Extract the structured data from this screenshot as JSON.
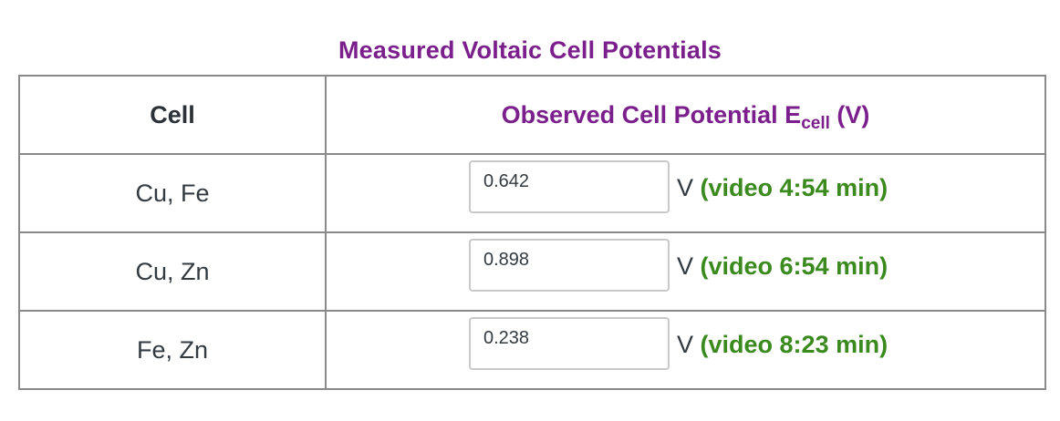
{
  "caption": "Measured Voltaic Cell Potentials",
  "header": {
    "cell": "Cell",
    "potential_prefix": "Observed Cell Potential E",
    "potential_sub": "cell",
    "potential_suffix": " (V)"
  },
  "rows": [
    {
      "cell": "Cu, Fe",
      "value": "0.642",
      "unit": "V",
      "video": "(video 4:54 min)"
    },
    {
      "cell": "Cu, Zn",
      "value": "0.898",
      "unit": "V",
      "video": "(video 6:54 min)"
    },
    {
      "cell": "Fe, Zn",
      "value": "0.238",
      "unit": "V",
      "video": "(video 8:23 min)"
    }
  ],
  "colors": {
    "caption": "#7b1f8c",
    "header_potential": "#7b1f8c",
    "video_link": "#3a8a1e",
    "border": "#8a8a8a"
  }
}
